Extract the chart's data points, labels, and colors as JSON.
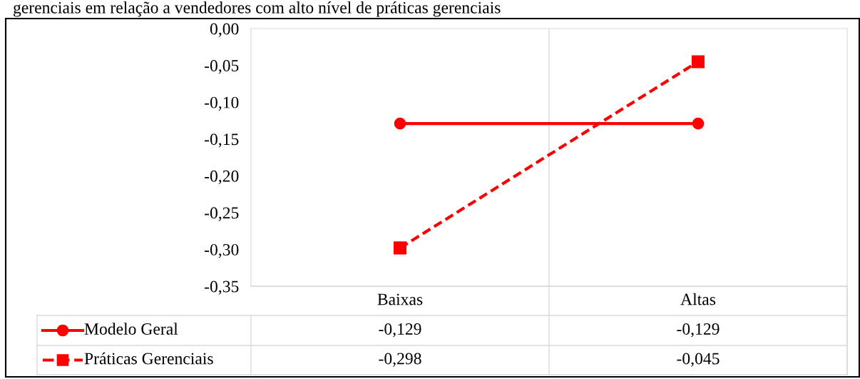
{
  "chart_data": {
    "type": "line",
    "title": "gerenciais em relação a vendedores com alto nível de práticas gerenciais",
    "categories": [
      "Baixas",
      "Altas"
    ],
    "series": [
      {
        "name": "Modelo Geral",
        "color": "#ff0000",
        "values": [
          -0.129,
          -0.129
        ],
        "value_labels": [
          "-0,129",
          "-0,129"
        ],
        "marker": "circle",
        "line_style": "solid"
      },
      {
        "name": "Práticas Gerenciais",
        "color": "#ff0000",
        "values": [
          -0.298,
          -0.045
        ],
        "value_labels": [
          "-0,298",
          "-0,045"
        ],
        "marker": "square",
        "line_style": "dashed"
      }
    ],
    "ylim": [
      -0.35,
      0
    ],
    "yticks": [
      {
        "value": 0,
        "label": "0,00"
      },
      {
        "value": -0.05,
        "label": "-0,05"
      },
      {
        "value": -0.1,
        "label": "-0,10"
      },
      {
        "value": -0.15,
        "label": "-0,15"
      },
      {
        "value": -0.2,
        "label": "-0,20"
      },
      {
        "value": -0.25,
        "label": "-0,25"
      },
      {
        "value": -0.3,
        "label": "-0,30"
      },
      {
        "value": -0.35,
        "label": "-0,35"
      }
    ],
    "grid": "x",
    "legend": "bottom"
  }
}
